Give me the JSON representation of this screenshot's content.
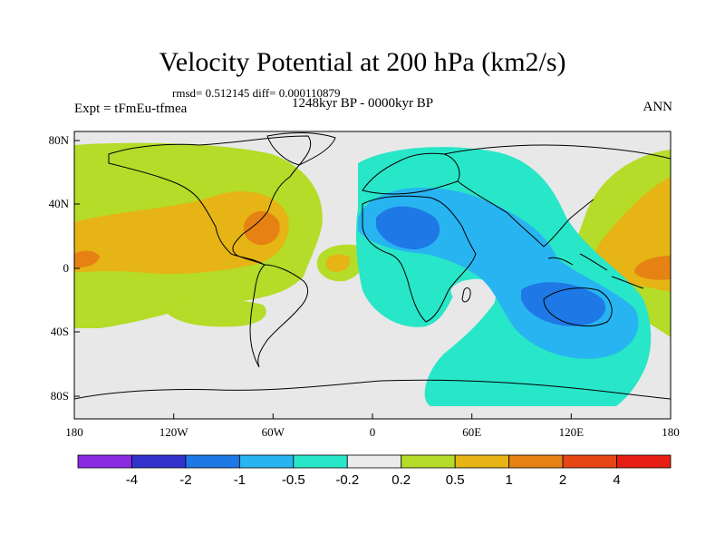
{
  "title": "Velocity Potential at 200 hPa (km2/s)",
  "subtitle": "rmsd= 0.512145 diff= 0.000110879",
  "period": "1248kyr BP - 0000kyr BP",
  "left_label": "Expt = tFmEu-tfmea",
  "right_label": "ANN",
  "map": {
    "projection": "equirectangular",
    "lon_range": [
      -180,
      180
    ],
    "lat_range": [
      -90,
      90
    ],
    "background_color": "#e8e8e8",
    "x_ticks": [
      "180",
      "120W",
      "60W",
      "0",
      "60E",
      "120E",
      "180"
    ],
    "y_ticks": [
      "80N",
      "40N",
      "0",
      "40S",
      "80S"
    ]
  },
  "colorbar": {
    "colors": [
      "#8a2be2",
      "#3232cd",
      "#1e78e6",
      "#28b4f0",
      "#28e6c8",
      "#ebebeb",
      "#b4dc28",
      "#e6b414",
      "#e68214",
      "#e64614",
      "#e61e14"
    ],
    "labels": [
      "-4",
      "-2",
      "-1",
      "-0.5",
      "-0.2",
      "0.2",
      "0.5",
      "1",
      "2",
      "4"
    ]
  }
}
